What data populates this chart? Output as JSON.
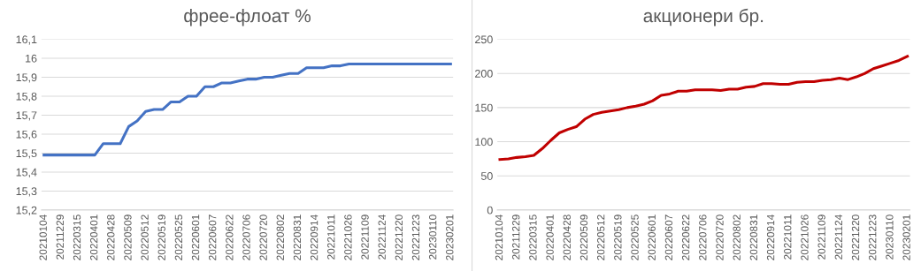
{
  "chart_data": [
    {
      "type": "line",
      "title": "фрее-флоат %",
      "categories": [
        "20210104",
        null,
        "20211229",
        null,
        "20220315",
        null,
        "20220401",
        null,
        "20220428",
        null,
        "20220509",
        null,
        "20220512",
        null,
        "20220519",
        null,
        "20220525",
        null,
        "20220601",
        null,
        "20220607",
        null,
        "20220622",
        null,
        "20220706",
        null,
        "20220720",
        null,
        "20220802",
        null,
        "20220831",
        null,
        "20220914",
        null,
        "20221011",
        null,
        "20221026",
        null,
        "20221109",
        null,
        "20221124",
        null,
        "20221220",
        null,
        "20221223",
        null,
        "20230110",
        null,
        "20230201"
      ],
      "series": [
        {
          "color": "#4472c4",
          "values": [
            15.49,
            15.49,
            15.49,
            15.49,
            15.49,
            15.49,
            15.49,
            15.55,
            15.55,
            15.55,
            15.64,
            15.67,
            15.72,
            15.73,
            15.73,
            15.77,
            15.77,
            15.8,
            15.8,
            15.85,
            15.85,
            15.87,
            15.87,
            15.88,
            15.89,
            15.89,
            15.9,
            15.9,
            15.91,
            15.92,
            15.92,
            15.95,
            15.95,
            15.95,
            15.96,
            15.96,
            15.97,
            15.97,
            15.97,
            15.97,
            15.97,
            15.97,
            15.97,
            15.97,
            15.97,
            15.97,
            15.97,
            15.97,
            15.97
          ]
        }
      ],
      "ylim": [
        15.2,
        16.1
      ],
      "yticks": [
        {
          "value": 15.2,
          "label": "15,2"
        },
        {
          "value": 15.3,
          "label": "15,3"
        },
        {
          "value": 15.4,
          "label": "15,4"
        },
        {
          "value": 15.5,
          "label": "15,5"
        },
        {
          "value": 15.6,
          "label": "15,6"
        },
        {
          "value": 15.7,
          "label": "15,7"
        },
        {
          "value": 15.8,
          "label": "15,8"
        },
        {
          "value": 15.9,
          "label": "15,9"
        },
        {
          "value": 16,
          "label": "16"
        },
        {
          "value": 16.1,
          "label": "16,1"
        }
      ],
      "grid": "y",
      "marker": "none",
      "line_style": "solid"
    },
    {
      "type": "line",
      "title": "акционери бр.",
      "categories": [
        "20210104",
        null,
        "20211229",
        null,
        "20220315",
        null,
        "20220401",
        null,
        "20220428",
        null,
        "20220509",
        null,
        "20220512",
        null,
        "20220519",
        null,
        "20220525",
        null,
        "20220601",
        null,
        "20220607",
        null,
        "20220622",
        null,
        "20220706",
        null,
        "20220720",
        null,
        "20220802",
        null,
        "20220831",
        null,
        "20220914",
        null,
        "20221011",
        null,
        "20221026",
        null,
        "20221109",
        null,
        "20221124",
        null,
        "20221220",
        null,
        "20221223",
        null,
        "20230110",
        null,
        "20230201"
      ],
      "series": [
        {
          "color": "#c00000",
          "values": [
            74,
            75,
            77,
            78,
            80,
            90,
            102,
            113,
            118,
            122,
            133,
            140,
            143,
            145,
            147,
            150,
            152,
            155,
            160,
            168,
            170,
            174,
            174,
            176,
            176,
            176,
            175,
            177,
            177,
            180,
            181,
            185,
            185,
            184,
            184,
            187,
            188,
            188,
            190,
            191,
            193,
            191,
            195,
            200,
            207,
            211,
            215,
            219,
            225
          ]
        }
      ],
      "ylim": [
        0,
        250
      ],
      "yticks": [
        0,
        50,
        100,
        150,
        200,
        250
      ],
      "grid": "y",
      "marker": "none",
      "line_style": "solid"
    }
  ]
}
